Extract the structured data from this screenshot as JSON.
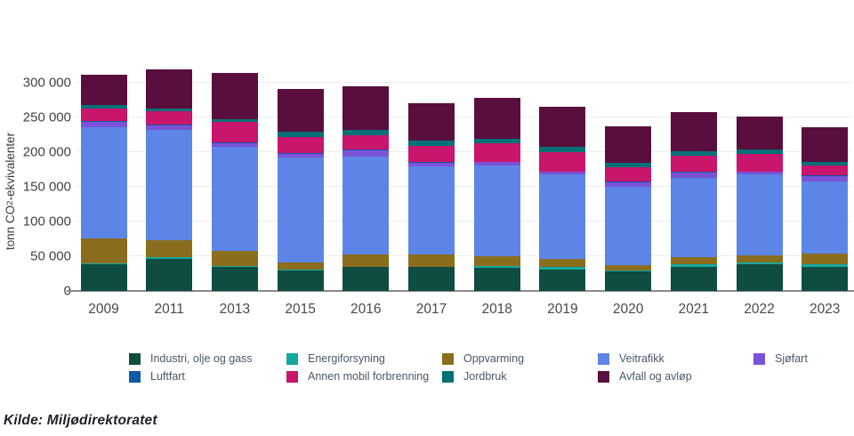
{
  "page": {
    "background": "#ffffff"
  },
  "chart": {
    "ylabel": {
      "pre": "tonn CO",
      "sub": "2",
      "post": "-ekvivalenter"
    },
    "source": "Kilde: Miljødirektoratet"
  },
  "chart_data": {
    "type": "bar",
    "stacked": true,
    "title": "",
    "xlabel": "",
    "ylabel": "tonn CO2-ekvivalenter",
    "grid": true,
    "legend_position": "bottom",
    "ylim": [
      0,
      325000
    ],
    "yticks": [
      0,
      50000,
      100000,
      150000,
      200000,
      250000,
      300000
    ],
    "ytick_labels": [
      "0",
      "50 000",
      "100 000",
      "150 000",
      "200 000",
      "250 000",
      "300 000"
    ],
    "categories": [
      "2009",
      "2011",
      "2013",
      "2015",
      "2016",
      "2017",
      "2018",
      "2019",
      "2020",
      "2021",
      "2022",
      "2023"
    ],
    "series": [
      {
        "name": "Industri, olje og gass",
        "color": "#0f4c41",
        "values": [
          38000,
          46000,
          34000,
          29000,
          34000,
          34000,
          33000,
          31000,
          28000,
          34000,
          39000,
          35000
        ]
      },
      {
        "name": "Energiforsyning",
        "color": "#13a89e",
        "values": [
          2000,
          2000,
          2000,
          2000,
          1000,
          1000,
          3000,
          3000,
          2000,
          4000,
          2000,
          3000
        ]
      },
      {
        "name": "Oppvarming",
        "color": "#8a6d1d",
        "values": [
          35000,
          25000,
          21000,
          10000,
          18000,
          17000,
          14000,
          12000,
          7000,
          11000,
          10000,
          16000
        ]
      },
      {
        "name": "Veitrafikk",
        "color": "#5d85e8",
        "values": [
          160000,
          159000,
          150000,
          151000,
          140000,
          127000,
          130000,
          121000,
          113000,
          114000,
          116000,
          104000
        ]
      },
      {
        "name": "Sjøfart",
        "color": "#7a53d9",
        "values": [
          8000,
          6000,
          6000,
          5000,
          9000,
          5000,
          5000,
          4000,
          6000,
          7000,
          4000,
          7000
        ]
      },
      {
        "name": "Luftfart",
        "color": "#0f5aa9",
        "values": [
          1000,
          1000,
          1000,
          1000,
          1000,
          1000,
          1000,
          1000,
          1000,
          1000,
          1000,
          1000
        ]
      },
      {
        "name": "Annen mobil forbrenning",
        "color": "#c9156b",
        "values": [
          18000,
          19000,
          29000,
          23000,
          21000,
          24000,
          26000,
          27000,
          21000,
          23000,
          25000,
          14000
        ]
      },
      {
        "name": "Jordbruk",
        "color": "#037078",
        "values": [
          5000,
          4000,
          4000,
          8000,
          8000,
          7000,
          7000,
          8000,
          6000,
          7000,
          7000,
          6000
        ]
      },
      {
        "name": "Avfall og avløp",
        "color": "#5a0e3e",
        "values": [
          44000,
          56000,
          66000,
          62000,
          62000,
          54000,
          59000,
          58000,
          53000,
          56000,
          47000,
          49000
        ]
      }
    ]
  }
}
